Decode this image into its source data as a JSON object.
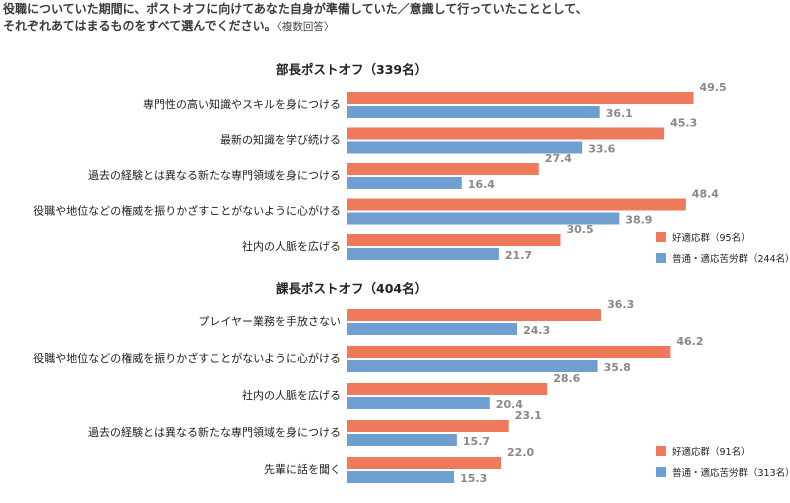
{
  "header": {
    "line1": "役職についていた期間に、ポストオフに向けてあなた自身が準備していた／意識して行っていたこととして、",
    "line2": "それぞれあてはまるものをすべて選んでください。",
    "note": "〈複数回答〉"
  },
  "colors": {
    "good": "#EF7A5B",
    "poor": "#6E9FD0"
  },
  "chart_data": [
    {
      "type": "bar",
      "orientation": "horizontal",
      "title": "部長ポストオフ（339名）",
      "categories": [
        "専門性の高い知識やスキルを身につける",
        "最新の知識を学び続ける",
        "過去の経験とは異なる新たな専門領域を身につける",
        "役職や地位などの権威を振りかざすことがないように心がける",
        "社内の人脈を広げる"
      ],
      "series": [
        {
          "name": "好適応群（95名）",
          "values": [
            49.5,
            45.3,
            27.4,
            48.4,
            30.5
          ]
        },
        {
          "name": "普通・適応苦労群（244名）",
          "values": [
            36.1,
            33.6,
            16.4,
            38.9,
            21.7
          ]
        }
      ],
      "legend": "bottom-right"
    },
    {
      "type": "bar",
      "orientation": "horizontal",
      "title": "課長ポストオフ（404名）",
      "categories": [
        "プレイヤー業務を手放さない",
        "役職や地位などの権威を振りかざすことがないように心がける",
        "社内の人脈を広げる",
        "過去の経験とは異なる新たな専門領域を身につける",
        "先輩に話を聞く"
      ],
      "series": [
        {
          "name": "好適応群（91名）",
          "values": [
            36.3,
            46.2,
            28.6,
            23.1,
            22.0
          ]
        },
        {
          "name": "普通・適応苦労群（313名）",
          "values": [
            24.3,
            35.8,
            20.4,
            15.7,
            15.3
          ]
        }
      ],
      "legend": "bottom-right"
    }
  ]
}
